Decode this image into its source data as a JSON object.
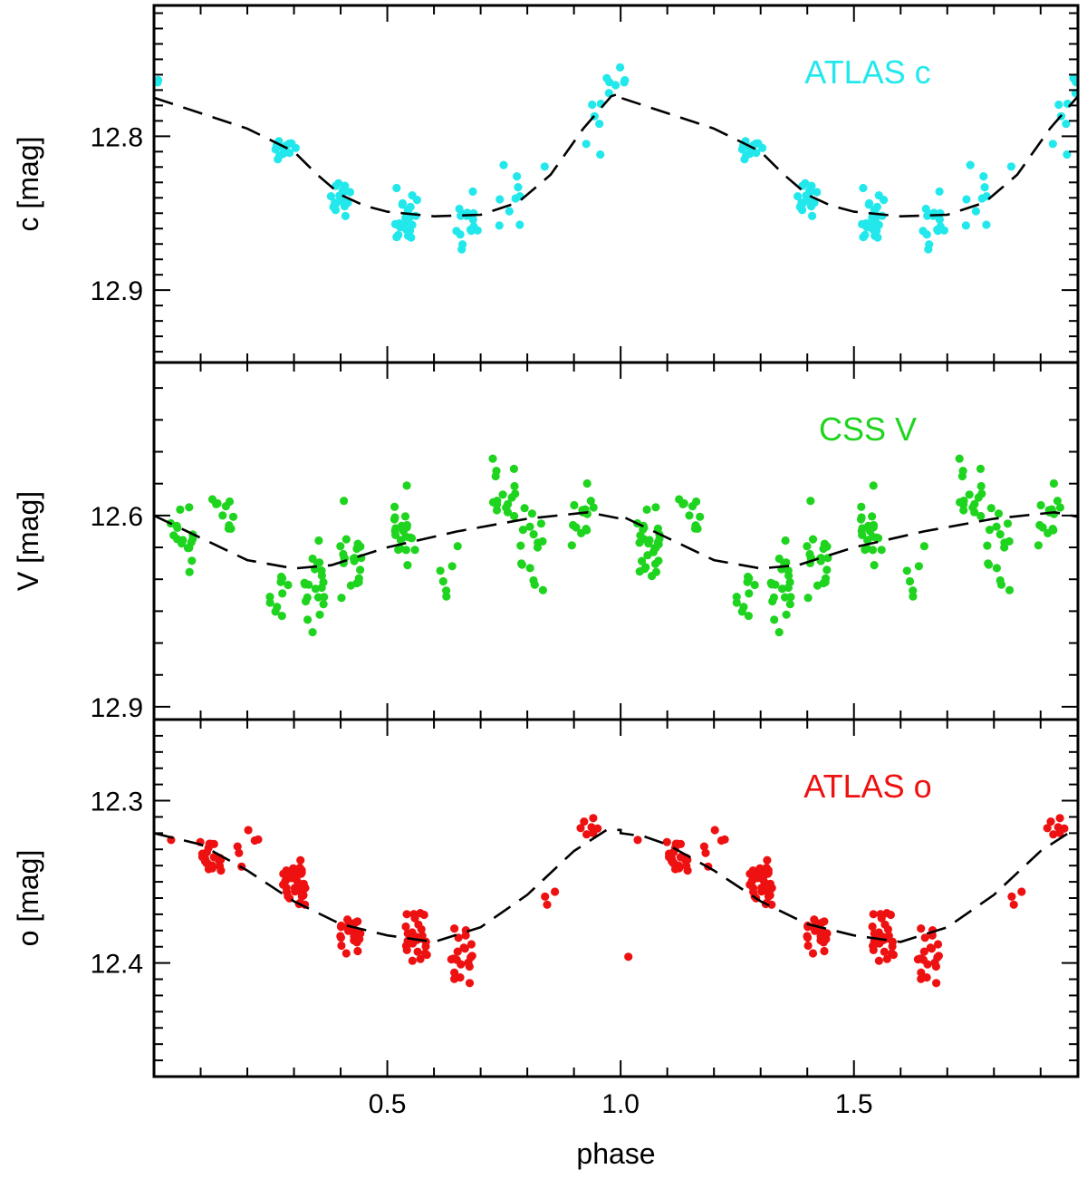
{
  "chart_data": {
    "type": "scatter",
    "x_label": "phase",
    "x_range": [
      0.0,
      1.98
    ],
    "x_ticks": [
      {
        "value": 0.5,
        "label": "0.5"
      },
      {
        "value": 1.0,
        "label": "1.0"
      },
      {
        "value": 1.5,
        "label": "1.5"
      }
    ],
    "x_minor_step": 0.1,
    "panels": [
      {
        "id": "c",
        "label": "ATLAS c",
        "ylabel": "c [mag]",
        "y_range": [
          12.715,
          12.947
        ],
        "y_reversed": true,
        "y_ticks": [
          {
            "value": 12.8,
            "label": "12.8"
          },
          {
            "value": 12.9,
            "label": "12.9"
          }
        ],
        "y_minor_step": 0.01,
        "color": "#22e8ec",
        "template": [
          [
            0.0,
            12.775
          ],
          [
            0.1,
            12.785
          ],
          [
            0.2,
            12.795
          ],
          [
            0.3,
            12.81
          ],
          [
            0.35,
            12.825
          ],
          [
            0.4,
            12.838
          ],
          [
            0.45,
            12.845
          ],
          [
            0.5,
            12.849
          ],
          [
            0.6,
            12.852
          ],
          [
            0.7,
            12.851
          ],
          [
            0.78,
            12.843
          ],
          [
            0.85,
            12.825
          ],
          [
            0.92,
            12.795
          ],
          [
            0.98,
            12.774
          ],
          [
            1.0,
            12.772
          ]
        ],
        "clusters": [
          {
            "phase": 0.0,
            "mag": 12.762,
            "n": 2,
            "spread": 0.006
          },
          {
            "phase": 0.28,
            "mag": 12.808,
            "n": 14,
            "spread": 0.006
          },
          {
            "phase": 0.4,
            "mag": 12.839,
            "n": 18,
            "spread": 0.01
          },
          {
            "phase": 0.54,
            "mag": 12.853,
            "n": 26,
            "spread": 0.015
          },
          {
            "phase": 0.67,
            "mag": 12.855,
            "n": 16,
            "spread": 0.016
          },
          {
            "phase": 0.76,
            "mag": 12.84,
            "n": 9,
            "spread": 0.018
          },
          {
            "phase": 0.84,
            "mag": 12.82,
            "n": 1,
            "spread": 0.003
          },
          {
            "phase": 0.95,
            "mag": 12.795,
            "n": 6,
            "spread": 0.014
          },
          {
            "phase": 0.99,
            "mag": 12.765,
            "n": 5,
            "spread": 0.009
          }
        ]
      },
      {
        "id": "v",
        "label": "CSS V",
        "ylabel": "V [mag]",
        "y_range": [
          12.36,
          12.92
        ],
        "y_reversed": true,
        "y_ticks": [
          {
            "value": 12.6,
            "label": "12.6"
          },
          {
            "value": 12.9,
            "label": "12.9"
          }
        ],
        "y_minor_step": 0.05,
        "color": "#1ed41e",
        "template": [
          [
            0.0,
            12.6
          ],
          [
            0.1,
            12.635
          ],
          [
            0.2,
            12.67
          ],
          [
            0.3,
            12.683
          ],
          [
            0.38,
            12.678
          ],
          [
            0.5,
            12.65
          ],
          [
            0.65,
            12.625
          ],
          [
            0.8,
            12.605
          ],
          [
            0.93,
            12.595
          ],
          [
            1.0,
            12.605
          ]
        ],
        "clusters": [
          {
            "phase": 0.06,
            "mag": 12.64,
            "n": 16,
            "spread": 0.045
          },
          {
            "phase": 0.15,
            "mag": 12.6,
            "n": 10,
            "spread": 0.035
          },
          {
            "phase": 0.27,
            "mag": 12.73,
            "n": 10,
            "spread": 0.035
          },
          {
            "phase": 0.34,
            "mag": 12.7,
            "n": 22,
            "spread": 0.06
          },
          {
            "phase": 0.42,
            "mag": 12.66,
            "n": 20,
            "spread": 0.06
          },
          {
            "phase": 0.54,
            "mag": 12.64,
            "n": 22,
            "spread": 0.06
          },
          {
            "phase": 0.63,
            "mag": 12.7,
            "n": 6,
            "spread": 0.04
          },
          {
            "phase": 0.75,
            "mag": 12.57,
            "n": 16,
            "spread": 0.05
          },
          {
            "phase": 0.81,
            "mag": 12.64,
            "n": 16,
            "spread": 0.07
          },
          {
            "phase": 0.92,
            "mag": 12.6,
            "n": 14,
            "spread": 0.05
          },
          {
            "phase": 1.06,
            "mag": 12.66,
            "n": 12,
            "spread": 0.045
          }
        ]
      },
      {
        "id": "o",
        "label": "ATLAS o",
        "ylabel": "o [mag]",
        "y_range": [
          12.25,
          12.47
        ],
        "y_reversed": true,
        "y_ticks": [
          {
            "value": 12.3,
            "label": "12.3"
          },
          {
            "value": 12.4,
            "label": "12.4"
          }
        ],
        "y_minor_step": 0.01,
        "color": "#ee1111",
        "template": [
          [
            0.0,
            12.32
          ],
          [
            0.1,
            12.327
          ],
          [
            0.2,
            12.343
          ],
          [
            0.3,
            12.362
          ],
          [
            0.4,
            12.376
          ],
          [
            0.5,
            12.383
          ],
          [
            0.6,
            12.387
          ],
          [
            0.7,
            12.378
          ],
          [
            0.8,
            12.358
          ],
          [
            0.9,
            12.331
          ],
          [
            0.97,
            12.318
          ],
          [
            1.0,
            12.318
          ],
          [
            1.05,
            12.322
          ]
        ],
        "clusters": [
          {
            "phase": 0.12,
            "mag": 12.335,
            "n": 22,
            "spread": 0.009
          },
          {
            "phase": 0.2,
            "mag": 12.33,
            "n": 6,
            "spread": 0.008
          },
          {
            "phase": 0.3,
            "mag": 12.352,
            "n": 40,
            "spread": 0.011
          },
          {
            "phase": 0.42,
            "mag": 12.382,
            "n": 24,
            "spread": 0.011
          },
          {
            "phase": 0.56,
            "mag": 12.385,
            "n": 34,
            "spread": 0.012
          },
          {
            "phase": 0.66,
            "mag": 12.395,
            "n": 20,
            "spread": 0.013
          },
          {
            "phase": 0.86,
            "mag": 12.362,
            "n": 3,
            "spread": 0.008
          },
          {
            "phase": 0.93,
            "mag": 12.318,
            "n": 7,
            "spread": 0.006
          },
          {
            "phase": 0.04,
            "mag": 12.325,
            "n": 1,
            "spread": 0.003
          },
          {
            "phase": 1.04,
            "mag": 12.397,
            "n": 1,
            "spread": 0.003
          }
        ]
      }
    ]
  }
}
